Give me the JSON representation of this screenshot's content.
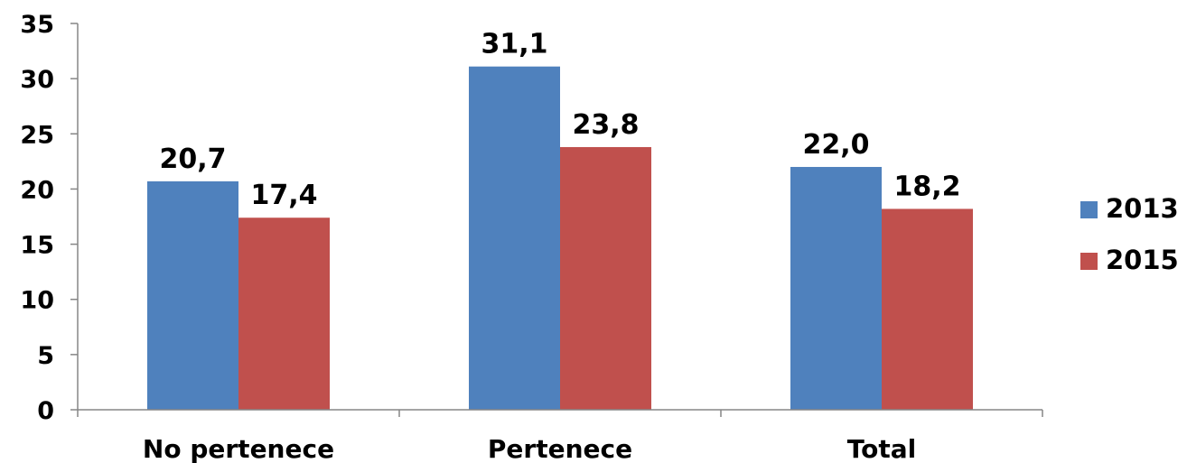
{
  "chart_data": {
    "type": "bar",
    "categories": [
      "No pertenece",
      "Pertenece",
      "Total"
    ],
    "series": [
      {
        "name": "2013",
        "color": "#4F81BD",
        "values": [
          20.7,
          31.1,
          22.0
        ],
        "labels": [
          "20,7",
          "31,1",
          "22,0"
        ]
      },
      {
        "name": "2015",
        "color": "#C0504D",
        "values": [
          17.4,
          23.8,
          18.2
        ],
        "labels": [
          "17,4",
          "23,8",
          "18,2"
        ]
      }
    ],
    "ylim": [
      0,
      35
    ],
    "yticks": [
      "0",
      "5",
      "10",
      "15",
      "20",
      "25",
      "30",
      "35"
    ],
    "ytick_values": [
      0,
      5,
      10,
      15,
      20,
      25,
      30,
      35
    ],
    "grid": false,
    "legend_position": "right"
  }
}
